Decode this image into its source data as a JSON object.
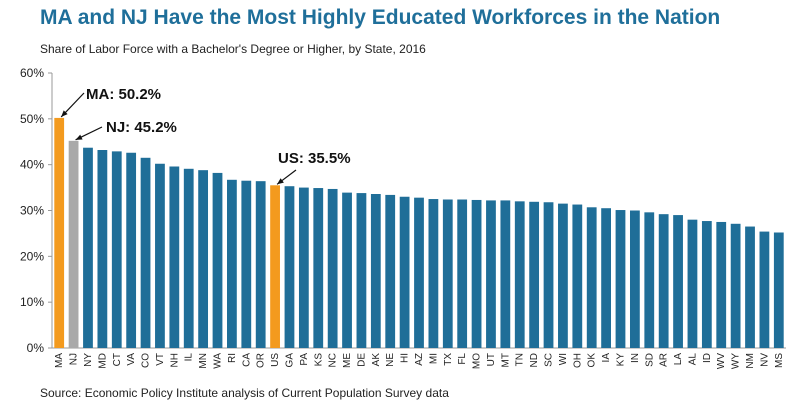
{
  "title": "MA and NJ Have the Most Highly Educated Workforces in the Nation",
  "subtitle": "Share of Labor Force with a Bachelor's Degree or Higher, by State, 2016",
  "source": "Source: Economic Policy Institute analysis of Current Population Survey data",
  "colors": {
    "bar": "#1f6e98",
    "highlight": "#f39a1e",
    "nj": "#a9a9a9",
    "axis": "#999999"
  },
  "chart_data": {
    "type": "bar",
    "title": "MA and NJ Have the Most Highly Educated Workforces in the Nation",
    "subtitle": "Share of Labor Force with a Bachelor's Degree or Higher, by State, 2016",
    "ylim": [
      0,
      60
    ],
    "yticks": [
      0,
      10,
      20,
      30,
      40,
      50,
      60
    ],
    "yticklabels": [
      "0%",
      "10%",
      "20%",
      "30%",
      "40%",
      "50%",
      "60%"
    ],
    "grid": false,
    "categories": [
      "MA",
      "NJ",
      "NY",
      "MD",
      "CT",
      "VA",
      "CO",
      "VT",
      "NH",
      "IL",
      "MN",
      "WA",
      "RI",
      "CA",
      "OR",
      "US",
      "GA",
      "PA",
      "KS",
      "NC",
      "ME",
      "DE",
      "AK",
      "NE",
      "HI",
      "AZ",
      "MI",
      "TX",
      "FL",
      "MO",
      "UT",
      "MT",
      "TN",
      "ND",
      "SC",
      "WI",
      "OH",
      "OK",
      "IA",
      "KY",
      "IN",
      "SD",
      "AR",
      "LA",
      "AL",
      "ID",
      "WV",
      "WY",
      "NM",
      "NV",
      "MS"
    ],
    "values": [
      50.2,
      45.2,
      43.7,
      43.2,
      42.9,
      42.6,
      41.5,
      40.2,
      39.6,
      39.1,
      38.8,
      38.2,
      36.7,
      36.5,
      36.4,
      35.5,
      35.3,
      35.0,
      34.9,
      34.7,
      33.9,
      33.8,
      33.6,
      33.4,
      33.0,
      32.8,
      32.5,
      32.4,
      32.4,
      32.3,
      32.2,
      32.2,
      32.0,
      31.9,
      31.8,
      31.5,
      31.3,
      30.7,
      30.5,
      30.1,
      30.0,
      29.6,
      29.2,
      29.0,
      28.0,
      27.7,
      27.5,
      27.1,
      26.5,
      25.4,
      25.2
    ],
    "annotations": [
      {
        "category": "MA",
        "text": "MA: 50.2%"
      },
      {
        "category": "NJ",
        "text": "NJ: 45.2%"
      },
      {
        "category": "US",
        "text": "US: 35.5%"
      }
    ]
  }
}
